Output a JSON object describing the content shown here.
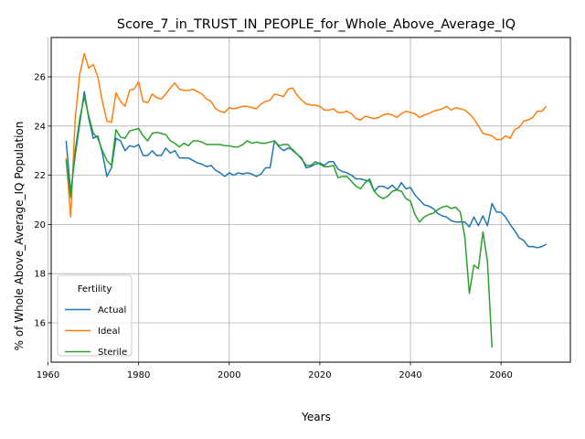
{
  "chart_data": {
    "type": "line",
    "title": "Score_7_in_TRUST_IN_PEOPLE_for_Whole_Above_Average_IQ",
    "xlabel": "Years",
    "ylabel": "% of Whole Above_Average_IQ Population",
    "xlim": [
      1960.7,
      2075.3
    ],
    "ylim": [
      14.4,
      27.6
    ],
    "xticks": [
      1960,
      1980,
      2000,
      2020,
      2040,
      2060
    ],
    "yticks": [
      16,
      18,
      20,
      22,
      24,
      26
    ],
    "grid": true,
    "legend": {
      "title": "Fertility",
      "placement": "bottom-left"
    },
    "series": [
      {
        "name": "Actual",
        "color": "#1f77b4",
        "points": [
          [
            1964,
            23.4
          ],
          [
            1965,
            21.3
          ],
          [
            1966,
            22.8
          ],
          [
            1967,
            24.1
          ],
          [
            1968,
            25.4
          ],
          [
            1969,
            24.3
          ],
          [
            1970,
            23.5
          ],
          [
            1971,
            23.6
          ],
          [
            1972,
            22.9
          ],
          [
            1973,
            21.95
          ],
          [
            1974,
            22.3
          ],
          [
            1975,
            23.5
          ],
          [
            1976,
            23.4
          ],
          [
            1977,
            23.0
          ],
          [
            1978,
            23.2
          ],
          [
            1979,
            23.15
          ],
          [
            1980,
            23.25
          ],
          [
            1981,
            22.8
          ],
          [
            1982,
            22.8
          ],
          [
            1983,
            23.0
          ],
          [
            1984,
            22.8
          ],
          [
            1985,
            22.8
          ],
          [
            1986,
            23.1
          ],
          [
            1987,
            22.9
          ],
          [
            1988,
            23.0
          ],
          [
            1989,
            22.7
          ],
          [
            1990,
            22.7
          ],
          [
            1991,
            22.7
          ],
          [
            1992,
            22.6
          ],
          [
            1993,
            22.5
          ],
          [
            1994,
            22.45
          ],
          [
            1995,
            22.35
          ],
          [
            1996,
            22.4
          ],
          [
            1997,
            22.2
          ],
          [
            1998,
            22.1
          ],
          [
            1999,
            21.95
          ],
          [
            2000,
            22.1
          ],
          [
            2001,
            22.0
          ],
          [
            2002,
            22.1
          ],
          [
            2003,
            22.05
          ],
          [
            2004,
            22.1
          ],
          [
            2005,
            22.05
          ],
          [
            2006,
            21.95
          ],
          [
            2007,
            22.05
          ],
          [
            2008,
            22.3
          ],
          [
            2009,
            22.3
          ],
          [
            2010,
            23.4
          ],
          [
            2011,
            23.15
          ],
          [
            2012,
            23.0
          ],
          [
            2013,
            23.1
          ],
          [
            2014,
            23.05
          ],
          [
            2015,
            22.85
          ],
          [
            2016,
            22.7
          ],
          [
            2017,
            22.3
          ],
          [
            2018,
            22.35
          ],
          [
            2019,
            22.45
          ],
          [
            2020,
            22.5
          ],
          [
            2021,
            22.4
          ],
          [
            2022,
            22.55
          ],
          [
            2023,
            22.55
          ],
          [
            2024,
            22.25
          ],
          [
            2025,
            22.15
          ],
          [
            2026,
            22.1
          ],
          [
            2027,
            22.0
          ],
          [
            2028,
            21.85
          ],
          [
            2029,
            21.85
          ],
          [
            2030,
            21.8
          ],
          [
            2031,
            21.75
          ],
          [
            2032,
            21.35
          ],
          [
            2033,
            21.55
          ],
          [
            2034,
            21.55
          ],
          [
            2035,
            21.45
          ],
          [
            2036,
            21.6
          ],
          [
            2037,
            21.4
          ],
          [
            2038,
            21.7
          ],
          [
            2039,
            21.45
          ],
          [
            2040,
            21.5
          ],
          [
            2041,
            21.2
          ],
          [
            2042,
            21.0
          ],
          [
            2043,
            20.8
          ],
          [
            2044,
            20.75
          ],
          [
            2045,
            20.65
          ],
          [
            2046,
            20.45
          ],
          [
            2047,
            20.35
          ],
          [
            2048,
            20.3
          ],
          [
            2049,
            20.15
          ],
          [
            2050,
            20.1
          ],
          [
            2051,
            20.1
          ],
          [
            2052,
            20.1
          ],
          [
            2053,
            19.9
          ],
          [
            2054,
            20.3
          ],
          [
            2055,
            19.95
          ],
          [
            2056,
            20.35
          ],
          [
            2057,
            19.95
          ],
          [
            2058,
            20.85
          ],
          [
            2059,
            20.5
          ],
          [
            2060,
            20.5
          ],
          [
            2061,
            20.3
          ],
          [
            2062,
            20.0
          ],
          [
            2063,
            19.75
          ],
          [
            2064,
            19.45
          ],
          [
            2065,
            19.35
          ],
          [
            2066,
            19.1
          ],
          [
            2067,
            19.1
          ],
          [
            2068,
            19.05
          ],
          [
            2069,
            19.1
          ],
          [
            2070,
            19.2
          ]
        ]
      },
      {
        "name": "Ideal",
        "color": "#ff7f0e",
        "points": [
          [
            1964,
            22.7
          ],
          [
            1965,
            20.3
          ],
          [
            1966,
            24.3
          ],
          [
            1967,
            26.1
          ],
          [
            1968,
            26.95
          ],
          [
            1969,
            26.35
          ],
          [
            1970,
            26.5
          ],
          [
            1971,
            26.0
          ],
          [
            1972,
            25.0
          ],
          [
            1973,
            24.2
          ],
          [
            1974,
            24.15
          ],
          [
            1975,
            25.35
          ],
          [
            1976,
            25.0
          ],
          [
            1977,
            24.8
          ],
          [
            1978,
            25.45
          ],
          [
            1979,
            25.5
          ],
          [
            1980,
            25.8
          ],
          [
            1981,
            25.0
          ],
          [
            1982,
            24.95
          ],
          [
            1983,
            25.3
          ],
          [
            1984,
            25.15
          ],
          [
            1985,
            25.1
          ],
          [
            1986,
            25.3
          ],
          [
            1987,
            25.55
          ],
          [
            1988,
            25.75
          ],
          [
            1989,
            25.5
          ],
          [
            1990,
            25.45
          ],
          [
            1991,
            25.45
          ],
          [
            1992,
            25.5
          ],
          [
            1993,
            25.4
          ],
          [
            1994,
            25.3
          ],
          [
            1995,
            25.1
          ],
          [
            1996,
            25.0
          ],
          [
            1997,
            24.7
          ],
          [
            1998,
            24.6
          ],
          [
            1999,
            24.55
          ],
          [
            2000,
            24.75
          ],
          [
            2001,
            24.7
          ],
          [
            2002,
            24.75
          ],
          [
            2003,
            24.8
          ],
          [
            2004,
            24.8
          ],
          [
            2005,
            24.75
          ],
          [
            2006,
            24.7
          ],
          [
            2007,
            24.9
          ],
          [
            2008,
            25.0
          ],
          [
            2009,
            25.05
          ],
          [
            2010,
            25.3
          ],
          [
            2011,
            25.25
          ],
          [
            2012,
            25.2
          ],
          [
            2013,
            25.5
          ],
          [
            2014,
            25.55
          ],
          [
            2015,
            25.25
          ],
          [
            2016,
            25.05
          ],
          [
            2017,
            24.9
          ],
          [
            2018,
            24.85
          ],
          [
            2019,
            24.85
          ],
          [
            2020,
            24.8
          ],
          [
            2021,
            24.65
          ],
          [
            2022,
            24.65
          ],
          [
            2023,
            24.7
          ],
          [
            2024,
            24.55
          ],
          [
            2025,
            24.55
          ],
          [
            2026,
            24.6
          ],
          [
            2027,
            24.5
          ],
          [
            2028,
            24.3
          ],
          [
            2029,
            24.25
          ],
          [
            2030,
            24.4
          ],
          [
            2031,
            24.35
          ],
          [
            2032,
            24.3
          ],
          [
            2033,
            24.35
          ],
          [
            2034,
            24.45
          ],
          [
            2035,
            24.5
          ],
          [
            2036,
            24.45
          ],
          [
            2037,
            24.35
          ],
          [
            2038,
            24.5
          ],
          [
            2039,
            24.6
          ],
          [
            2040,
            24.55
          ],
          [
            2041,
            24.5
          ],
          [
            2042,
            24.35
          ],
          [
            2043,
            24.45
          ],
          [
            2044,
            24.5
          ],
          [
            2045,
            24.6
          ],
          [
            2046,
            24.65
          ],
          [
            2047,
            24.7
          ],
          [
            2048,
            24.8
          ],
          [
            2049,
            24.65
          ],
          [
            2050,
            24.75
          ],
          [
            2051,
            24.7
          ],
          [
            2052,
            24.65
          ],
          [
            2053,
            24.5
          ],
          [
            2054,
            24.3
          ],
          [
            2055,
            24.0
          ],
          [
            2056,
            23.7
          ],
          [
            2057,
            23.65
          ],
          [
            2058,
            23.6
          ],
          [
            2059,
            23.45
          ],
          [
            2060,
            23.45
          ],
          [
            2061,
            23.6
          ],
          [
            2062,
            23.5
          ],
          [
            2063,
            23.85
          ],
          [
            2064,
            23.95
          ],
          [
            2065,
            24.2
          ],
          [
            2066,
            24.25
          ],
          [
            2067,
            24.35
          ],
          [
            2068,
            24.6
          ],
          [
            2069,
            24.6
          ],
          [
            2070,
            24.8
          ]
        ]
      },
      {
        "name": "Sterile",
        "color": "#2ca02c",
        "points": [
          [
            1964,
            22.6
          ],
          [
            1965,
            21.1
          ],
          [
            1966,
            23.0
          ],
          [
            1967,
            24.3
          ],
          [
            1968,
            25.2
          ],
          [
            1969,
            24.4
          ],
          [
            1970,
            23.7
          ],
          [
            1971,
            23.5
          ],
          [
            1972,
            23.0
          ],
          [
            1973,
            22.6
          ],
          [
            1974,
            22.4
          ],
          [
            1975,
            23.85
          ],
          [
            1976,
            23.55
          ],
          [
            1977,
            23.5
          ],
          [
            1978,
            23.8
          ],
          [
            1979,
            23.85
          ],
          [
            1980,
            23.9
          ],
          [
            1981,
            23.6
          ],
          [
            1982,
            23.4
          ],
          [
            1983,
            23.7
          ],
          [
            1984,
            23.75
          ],
          [
            1985,
            23.7
          ],
          [
            1986,
            23.65
          ],
          [
            1987,
            23.4
          ],
          [
            1988,
            23.3
          ],
          [
            1989,
            23.15
          ],
          [
            1990,
            23.3
          ],
          [
            1991,
            23.2
          ],
          [
            1992,
            23.4
          ],
          [
            1993,
            23.4
          ],
          [
            1994,
            23.35
          ],
          [
            1995,
            23.25
          ],
          [
            1996,
            23.25
          ],
          [
            1997,
            23.25
          ],
          [
            1998,
            23.25
          ],
          [
            1999,
            23.2
          ],
          [
            2000,
            23.2
          ],
          [
            2001,
            23.15
          ],
          [
            2002,
            23.15
          ],
          [
            2003,
            23.25
          ],
          [
            2004,
            23.4
          ],
          [
            2005,
            23.3
          ],
          [
            2006,
            23.35
          ],
          [
            2007,
            23.3
          ],
          [
            2008,
            23.3
          ],
          [
            2009,
            23.35
          ],
          [
            2010,
            23.4
          ],
          [
            2011,
            23.2
          ],
          [
            2012,
            23.25
          ],
          [
            2013,
            23.25
          ],
          [
            2014,
            23.0
          ],
          [
            2015,
            22.85
          ],
          [
            2016,
            22.65
          ],
          [
            2017,
            22.4
          ],
          [
            2018,
            22.4
          ],
          [
            2019,
            22.55
          ],
          [
            2020,
            22.45
          ],
          [
            2021,
            22.35
          ],
          [
            2022,
            22.35
          ],
          [
            2023,
            22.4
          ],
          [
            2024,
            21.9
          ],
          [
            2025,
            21.95
          ],
          [
            2026,
            21.95
          ],
          [
            2027,
            21.75
          ],
          [
            2028,
            21.55
          ],
          [
            2029,
            21.45
          ],
          [
            2030,
            21.7
          ],
          [
            2031,
            21.85
          ],
          [
            2032,
            21.35
          ],
          [
            2033,
            21.15
          ],
          [
            2034,
            21.05
          ],
          [
            2035,
            21.15
          ],
          [
            2036,
            21.35
          ],
          [
            2037,
            21.4
          ],
          [
            2038,
            21.35
          ],
          [
            2039,
            21.05
          ],
          [
            2040,
            20.95
          ],
          [
            2041,
            20.4
          ],
          [
            2042,
            20.1
          ],
          [
            2043,
            20.3
          ],
          [
            2044,
            20.4
          ],
          [
            2045,
            20.45
          ],
          [
            2046,
            20.6
          ],
          [
            2047,
            20.7
          ],
          [
            2048,
            20.75
          ],
          [
            2049,
            20.65
          ],
          [
            2050,
            20.7
          ],
          [
            2051,
            20.5
          ],
          [
            2052,
            19.5
          ],
          [
            2053,
            17.2
          ],
          [
            2054,
            18.35
          ],
          [
            2055,
            18.2
          ],
          [
            2056,
            19.7
          ],
          [
            2057,
            18.5
          ],
          [
            2058,
            15.0
          ]
        ]
      }
    ]
  }
}
